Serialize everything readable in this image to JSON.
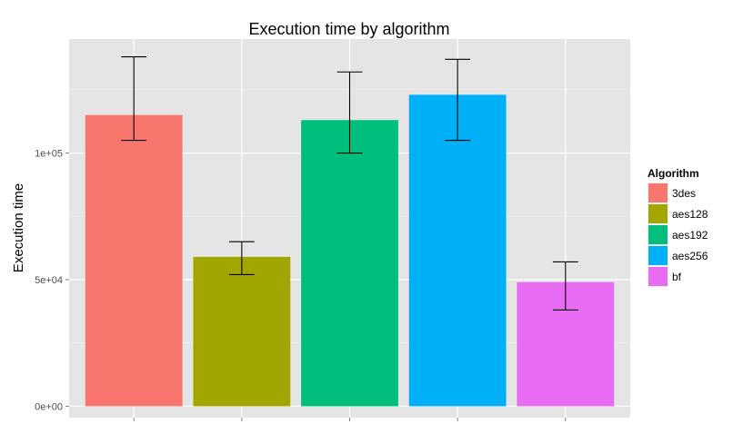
{
  "chart_data": {
    "type": "bar",
    "title": "Execution time by algorithm",
    "xlabel": "",
    "ylabel": "Execution time",
    "categories": [
      "3des",
      "aes128",
      "aes192",
      "aes256",
      "bf"
    ],
    "values": [
      115000,
      59000,
      113000,
      123000,
      49000
    ],
    "error_low": [
      105000,
      52000,
      100000,
      105000,
      38000
    ],
    "error_high": [
      138000,
      65000,
      132000,
      137000,
      57000
    ],
    "colors": [
      "#F8766D",
      "#A3A500",
      "#00BF7D",
      "#00B0F6",
      "#E76BF3"
    ],
    "ylim": [
      -4500,
      145000
    ],
    "y_ticks": [
      0,
      50000,
      100000
    ],
    "y_tick_labels": [
      "0e+00",
      "5e+04",
      "1e+05"
    ],
    "x_tick_labels": [
      "",
      "",
      "",
      "",
      ""
    ],
    "grid": true,
    "legend": {
      "title": "Algorithm",
      "position": "right",
      "entries": [
        "3des",
        "aes128",
        "aes192",
        "aes256",
        "bf"
      ]
    },
    "panel_background": "#E5E5E5",
    "gridline_color": "#FFFFFF"
  }
}
